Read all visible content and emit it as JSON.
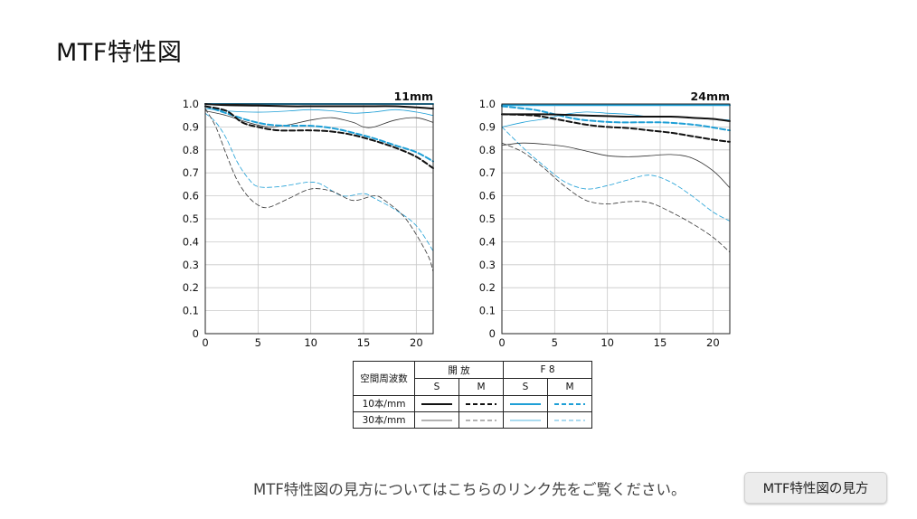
{
  "page": {
    "title": "MTF特性図"
  },
  "colors": {
    "open_aperture": "#111111",
    "f8": "#1e9fd6"
  },
  "chart_data": [
    {
      "type": "line",
      "title": "11mm",
      "xlim": [
        0,
        21.6
      ],
      "ylim": [
        0,
        1.0
      ],
      "x_ticks": [
        0,
        5,
        10,
        15,
        20
      ],
      "y_ticks": [
        0,
        0.1,
        0.2,
        0.3,
        0.4,
        0.5,
        0.6,
        0.7,
        0.8,
        0.9,
        1.0
      ],
      "grid": true,
      "series": [
        {
          "aperture": "open",
          "freq": "10本/mm",
          "dir": "S",
          "x": [
            0,
            2,
            5,
            8,
            10,
            12,
            15,
            18,
            20,
            21.6
          ],
          "y": [
            1.0,
            0.995,
            0.993,
            0.99,
            0.99,
            0.99,
            0.99,
            0.99,
            0.985,
            0.98
          ]
        },
        {
          "aperture": "open",
          "freq": "10本/mm",
          "dir": "M",
          "x": [
            0,
            2,
            3.5,
            5,
            7,
            10,
            12,
            14,
            16,
            18,
            20,
            21.6
          ],
          "y": [
            0.99,
            0.97,
            0.92,
            0.9,
            0.885,
            0.885,
            0.88,
            0.865,
            0.84,
            0.81,
            0.77,
            0.72
          ]
        },
        {
          "aperture": "open",
          "freq": "30本/mm",
          "dir": "S",
          "x": [
            0,
            2,
            4,
            6,
            8,
            10,
            12,
            14,
            15,
            16,
            18,
            20,
            21.6
          ],
          "y": [
            0.97,
            0.95,
            0.92,
            0.9,
            0.91,
            0.93,
            0.94,
            0.92,
            0.9,
            0.9,
            0.93,
            0.94,
            0.92
          ]
        },
        {
          "aperture": "open",
          "freq": "30本/mm",
          "dir": "M",
          "x": [
            0,
            1,
            2,
            3,
            4,
            5,
            6,
            8,
            10,
            12,
            14,
            16,
            17,
            19,
            21,
            21.6
          ],
          "y": [
            0.98,
            0.9,
            0.78,
            0.67,
            0.6,
            0.56,
            0.55,
            0.59,
            0.63,
            0.62,
            0.58,
            0.6,
            0.58,
            0.5,
            0.35,
            0.27
          ]
        },
        {
          "aperture": "f8",
          "freq": "10本/mm",
          "dir": "S",
          "x": [
            0,
            5,
            10,
            15,
            20,
            21.6
          ],
          "y": [
            1.0,
            1.0,
            1.0,
            1.0,
            1.0,
            1.0
          ]
        },
        {
          "aperture": "f8",
          "freq": "10本/mm",
          "dir": "M",
          "x": [
            0,
            2,
            4,
            6,
            8,
            10,
            12,
            14,
            16,
            18,
            20,
            21.6
          ],
          "y": [
            0.99,
            0.96,
            0.93,
            0.91,
            0.905,
            0.905,
            0.895,
            0.875,
            0.85,
            0.82,
            0.79,
            0.75
          ]
        },
        {
          "aperture": "f8",
          "freq": "30本/mm",
          "dir": "S",
          "x": [
            0,
            2,
            4,
            6,
            8,
            10,
            12,
            14,
            16,
            18,
            20,
            21.6
          ],
          "y": [
            0.98,
            0.97,
            0.965,
            0.965,
            0.97,
            0.975,
            0.97,
            0.96,
            0.965,
            0.975,
            0.965,
            0.95
          ]
        },
        {
          "aperture": "f8",
          "freq": "30本/mm",
          "dir": "M",
          "x": [
            0,
            1,
            2,
            3,
            4,
            5,
            7,
            9,
            10,
            11,
            13,
            15,
            16,
            18,
            20,
            21.6
          ],
          "y": [
            0.96,
            0.92,
            0.85,
            0.75,
            0.68,
            0.64,
            0.64,
            0.655,
            0.66,
            0.65,
            0.6,
            0.61,
            0.59,
            0.54,
            0.47,
            0.36
          ]
        }
      ]
    },
    {
      "type": "line",
      "title": "24mm",
      "xlim": [
        0,
        21.6
      ],
      "ylim": [
        0,
        1.0
      ],
      "x_ticks": [
        0,
        5,
        10,
        15,
        20
      ],
      "y_ticks": [
        0,
        0.1,
        0.2,
        0.3,
        0.4,
        0.5,
        0.6,
        0.7,
        0.8,
        0.9,
        1.0
      ],
      "grid": true,
      "series": [
        {
          "aperture": "open",
          "freq": "10本/mm",
          "dir": "S",
          "x": [
            0,
            4,
            8,
            12,
            16,
            18,
            20,
            21.6
          ],
          "y": [
            0.955,
            0.955,
            0.95,
            0.945,
            0.945,
            0.94,
            0.935,
            0.925
          ]
        },
        {
          "aperture": "open",
          "freq": "10本/mm",
          "dir": "M",
          "x": [
            0,
            3,
            5,
            8,
            10,
            12,
            14,
            16,
            18,
            20,
            21.6
          ],
          "y": [
            0.955,
            0.95,
            0.935,
            0.91,
            0.9,
            0.895,
            0.885,
            0.875,
            0.86,
            0.845,
            0.835
          ]
        },
        {
          "aperture": "open",
          "freq": "30本/mm",
          "dir": "S",
          "x": [
            0,
            2,
            4,
            6,
            8,
            10,
            12,
            14,
            16,
            18,
            20,
            21.6
          ],
          "y": [
            0.82,
            0.83,
            0.825,
            0.815,
            0.795,
            0.775,
            0.77,
            0.775,
            0.78,
            0.765,
            0.71,
            0.635
          ]
        },
        {
          "aperture": "open",
          "freq": "30本/mm",
          "dir": "M",
          "x": [
            0,
            2,
            4,
            6,
            8,
            10,
            12,
            14,
            16,
            18,
            20,
            21.6
          ],
          "y": [
            0.83,
            0.79,
            0.72,
            0.64,
            0.58,
            0.565,
            0.575,
            0.57,
            0.53,
            0.48,
            0.42,
            0.355
          ]
        },
        {
          "aperture": "f8",
          "freq": "10本/mm",
          "dir": "S",
          "x": [
            0,
            5,
            10,
            15,
            20,
            21.6
          ],
          "y": [
            0.995,
            0.995,
            0.995,
            0.995,
            0.995,
            0.995
          ]
        },
        {
          "aperture": "f8",
          "freq": "10本/mm",
          "dir": "M",
          "x": [
            0,
            3,
            5,
            7,
            9,
            11,
            13,
            15,
            17,
            19,
            21.6
          ],
          "y": [
            0.99,
            0.975,
            0.955,
            0.935,
            0.925,
            0.92,
            0.92,
            0.92,
            0.915,
            0.905,
            0.885
          ]
        },
        {
          "aperture": "f8",
          "freq": "30本/mm",
          "dir": "S",
          "x": [
            0,
            2,
            4,
            6,
            8,
            10,
            12,
            14,
            16,
            18,
            20,
            21.6
          ],
          "y": [
            0.9,
            0.92,
            0.935,
            0.955,
            0.965,
            0.96,
            0.955,
            0.945,
            0.945,
            0.94,
            0.935,
            0.93
          ]
        },
        {
          "aperture": "f8",
          "freq": "30本/mm",
          "dir": "M",
          "x": [
            0,
            2,
            4,
            6,
            8,
            10,
            12,
            14,
            16,
            18,
            20,
            21.6
          ],
          "y": [
            0.9,
            0.81,
            0.73,
            0.66,
            0.63,
            0.645,
            0.67,
            0.69,
            0.66,
            0.6,
            0.53,
            0.49
          ]
        }
      ]
    }
  ],
  "legend": {
    "header_label": "空間周波数",
    "aperture_open": "開 放",
    "aperture_f8": "F 8",
    "sagittal": "S",
    "meridional": "M",
    "row_10": "10本/mm",
    "row_30": "30本/mm"
  },
  "footer": {
    "help_text": "MTF特性図の見方についてはこちらのリンク先をご覧ください。",
    "help_button": "MTF特性図の見方"
  }
}
